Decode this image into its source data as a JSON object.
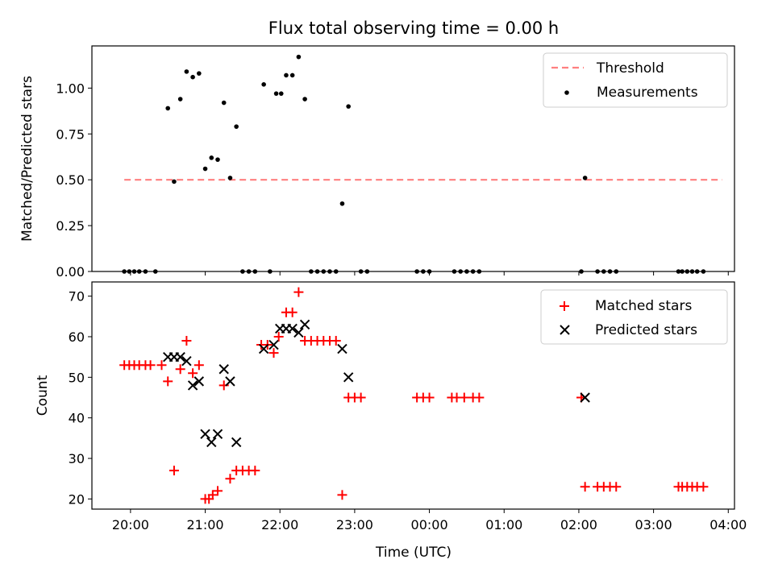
{
  "figure": {
    "title": "Flux total observing time = 0.00 h"
  },
  "chart_data": [
    {
      "type": "scatter",
      "title": "Flux total observing time = 0.00 h",
      "xlabel": "",
      "ylabel": "Matched/Predicted stars",
      "xlim": [
        "19:29",
        "04:05"
      ],
      "ylim": [
        0,
        1.23
      ],
      "x_ticks": [
        "20:00",
        "21:00",
        "22:00",
        "23:00",
        "00:00",
        "01:00",
        "02:00",
        "03:00",
        "04:00"
      ],
      "y_ticks": [
        "0.00",
        "0.25",
        "0.50",
        "0.75",
        "1.00"
      ],
      "grid": false,
      "legend_position": "top-right",
      "colors": {
        "threshold": "#ff7f7f",
        "measurements": "#000000"
      },
      "threshold": {
        "name": "Threshold",
        "y": 0.5,
        "x_range": [
          "19:55",
          "03:55"
        ]
      },
      "series": [
        {
          "name": "Measurements",
          "points": [
            {
              "x": "19:55",
              "y": 0
            },
            {
              "x": "19:59",
              "y": 0
            },
            {
              "x": "20:03",
              "y": 0
            },
            {
              "x": "20:07",
              "y": 0
            },
            {
              "x": "20:12",
              "y": 0
            },
            {
              "x": "20:20",
              "y": 0
            },
            {
              "x": "20:30",
              "y": 0.89
            },
            {
              "x": "20:35",
              "y": 0.49
            },
            {
              "x": "20:40",
              "y": 0.94
            },
            {
              "x": "20:45",
              "y": 1.09
            },
            {
              "x": "20:50",
              "y": 1.06
            },
            {
              "x": "20:55",
              "y": 1.08
            },
            {
              "x": "21:00",
              "y": 0.56
            },
            {
              "x": "21:05",
              "y": 0.62
            },
            {
              "x": "21:10",
              "y": 0.61
            },
            {
              "x": "21:15",
              "y": 0.92
            },
            {
              "x": "21:20",
              "y": 0.51
            },
            {
              "x": "21:25",
              "y": 0.79
            },
            {
              "x": "21:30",
              "y": 0
            },
            {
              "x": "21:35",
              "y": 0
            },
            {
              "x": "21:40",
              "y": 0
            },
            {
              "x": "21:47",
              "y": 1.02
            },
            {
              "x": "21:52",
              "y": 0
            },
            {
              "x": "21:57",
              "y": 0.97
            },
            {
              "x": "22:01",
              "y": 0.97
            },
            {
              "x": "22:05",
              "y": 1.07
            },
            {
              "x": "22:10",
              "y": 1.07
            },
            {
              "x": "22:15",
              "y": 1.17
            },
            {
              "x": "22:20",
              "y": 0.94
            },
            {
              "x": "22:25",
              "y": 0
            },
            {
              "x": "22:30",
              "y": 0
            },
            {
              "x": "22:35",
              "y": 0
            },
            {
              "x": "22:40",
              "y": 0
            },
            {
              "x": "22:45",
              "y": 0
            },
            {
              "x": "22:50",
              "y": 0.37
            },
            {
              "x": "22:55",
              "y": 0.9
            },
            {
              "x": "23:05",
              "y": 0
            },
            {
              "x": "23:10",
              "y": 0
            },
            {
              "x": "23:50",
              "y": 0
            },
            {
              "x": "23:55",
              "y": 0
            },
            {
              "x": "00:00",
              "y": 0
            },
            {
              "x": "00:20",
              "y": 0
            },
            {
              "x": "00:25",
              "y": 0
            },
            {
              "x": "00:30",
              "y": 0
            },
            {
              "x": "00:35",
              "y": 0
            },
            {
              "x": "00:40",
              "y": 0
            },
            {
              "x": "02:02",
              "y": 0
            },
            {
              "x": "02:05",
              "y": 0.51
            },
            {
              "x": "02:15",
              "y": 0
            },
            {
              "x": "02:20",
              "y": 0
            },
            {
              "x": "02:25",
              "y": 0
            },
            {
              "x": "02:30",
              "y": 0
            },
            {
              "x": "03:20",
              "y": 0
            },
            {
              "x": "03:23",
              "y": 0
            },
            {
              "x": "03:27",
              "y": 0
            },
            {
              "x": "03:31",
              "y": 0
            },
            {
              "x": "03:35",
              "y": 0
            },
            {
              "x": "03:40",
              "y": 0
            }
          ]
        }
      ]
    },
    {
      "type": "scatter",
      "title": "",
      "xlabel": "Time (UTC)",
      "ylabel": "Count",
      "xlim": [
        "19:29",
        "04:05"
      ],
      "ylim": [
        17.5,
        73.5
      ],
      "x_ticks": [
        "20:00",
        "21:00",
        "22:00",
        "23:00",
        "00:00",
        "01:00",
        "02:00",
        "03:00",
        "04:00"
      ],
      "y_ticks": [
        "20",
        "30",
        "40",
        "50",
        "60",
        "70"
      ],
      "grid": false,
      "legend_position": "top-right",
      "colors": {
        "matched": "#ff0000",
        "predicted": "#000000"
      },
      "series": [
        {
          "name": "Matched stars",
          "marker": "plus",
          "points": [
            {
              "x": "19:55",
              "y": 53
            },
            {
              "x": "19:59",
              "y": 53
            },
            {
              "x": "20:03",
              "y": 53
            },
            {
              "x": "20:07",
              "y": 53
            },
            {
              "x": "20:12",
              "y": 53
            },
            {
              "x": "20:16",
              "y": 53
            },
            {
              "x": "20:25",
              "y": 53
            },
            {
              "x": "20:30",
              "y": 49
            },
            {
              "x": "20:35",
              "y": 27
            },
            {
              "x": "20:40",
              "y": 52
            },
            {
              "x": "20:45",
              "y": 59
            },
            {
              "x": "20:50",
              "y": 51
            },
            {
              "x": "20:55",
              "y": 53
            },
            {
              "x": "21:00",
              "y": 20
            },
            {
              "x": "21:03",
              "y": 20
            },
            {
              "x": "21:06",
              "y": 21
            },
            {
              "x": "21:10",
              "y": 22
            },
            {
              "x": "21:15",
              "y": 48
            },
            {
              "x": "21:20",
              "y": 25
            },
            {
              "x": "21:25",
              "y": 27
            },
            {
              "x": "21:30",
              "y": 27
            },
            {
              "x": "21:35",
              "y": 27
            },
            {
              "x": "21:40",
              "y": 27
            },
            {
              "x": "21:45",
              "y": 58
            },
            {
              "x": "21:50",
              "y": 58
            },
            {
              "x": "21:55",
              "y": 56
            },
            {
              "x": "21:59",
              "y": 60
            },
            {
              "x": "22:05",
              "y": 66
            },
            {
              "x": "22:10",
              "y": 66
            },
            {
              "x": "22:15",
              "y": 71
            },
            {
              "x": "22:20",
              "y": 59
            },
            {
              "x": "22:25",
              "y": 59
            },
            {
              "x": "22:30",
              "y": 59
            },
            {
              "x": "22:35",
              "y": 59
            },
            {
              "x": "22:40",
              "y": 59
            },
            {
              "x": "22:45",
              "y": 59
            },
            {
              "x": "22:50",
              "y": 21
            },
            {
              "x": "22:55",
              "y": 45
            },
            {
              "x": "23:00",
              "y": 45
            },
            {
              "x": "23:05",
              "y": 45
            },
            {
              "x": "23:50",
              "y": 45
            },
            {
              "x": "23:55",
              "y": 45
            },
            {
              "x": "00:00",
              "y": 45
            },
            {
              "x": "00:18",
              "y": 45
            },
            {
              "x": "00:22",
              "y": 45
            },
            {
              "x": "00:28",
              "y": 45
            },
            {
              "x": "00:35",
              "y": 45
            },
            {
              "x": "00:40",
              "y": 45
            },
            {
              "x": "02:02",
              "y": 45
            },
            {
              "x": "02:05",
              "y": 23
            },
            {
              "x": "02:15",
              "y": 23
            },
            {
              "x": "02:20",
              "y": 23
            },
            {
              "x": "02:25",
              "y": 23
            },
            {
              "x": "02:30",
              "y": 23
            },
            {
              "x": "03:20",
              "y": 23
            },
            {
              "x": "03:23",
              "y": 23
            },
            {
              "x": "03:27",
              "y": 23
            },
            {
              "x": "03:31",
              "y": 23
            },
            {
              "x": "03:35",
              "y": 23
            },
            {
              "x": "03:40",
              "y": 23
            }
          ]
        },
        {
          "name": "Predicted stars",
          "marker": "x",
          "points": [
            {
              "x": "20:30",
              "y": 55
            },
            {
              "x": "20:35",
              "y": 55
            },
            {
              "x": "20:40",
              "y": 55
            },
            {
              "x": "20:45",
              "y": 54
            },
            {
              "x": "20:50",
              "y": 48
            },
            {
              "x": "20:55",
              "y": 49
            },
            {
              "x": "21:00",
              "y": 36
            },
            {
              "x": "21:05",
              "y": 34
            },
            {
              "x": "21:10",
              "y": 36
            },
            {
              "x": "21:15",
              "y": 52
            },
            {
              "x": "21:20",
              "y": 49
            },
            {
              "x": "21:25",
              "y": 34
            },
            {
              "x": "21:47",
              "y": 57
            },
            {
              "x": "21:55",
              "y": 58
            },
            {
              "x": "22:00",
              "y": 62
            },
            {
              "x": "22:05",
              "y": 62
            },
            {
              "x": "22:10",
              "y": 62
            },
            {
              "x": "22:15",
              "y": 61
            },
            {
              "x": "22:20",
              "y": 63
            },
            {
              "x": "22:50",
              "y": 57
            },
            {
              "x": "22:55",
              "y": 50
            },
            {
              "x": "02:05",
              "y": 45
            }
          ]
        }
      ]
    }
  ]
}
